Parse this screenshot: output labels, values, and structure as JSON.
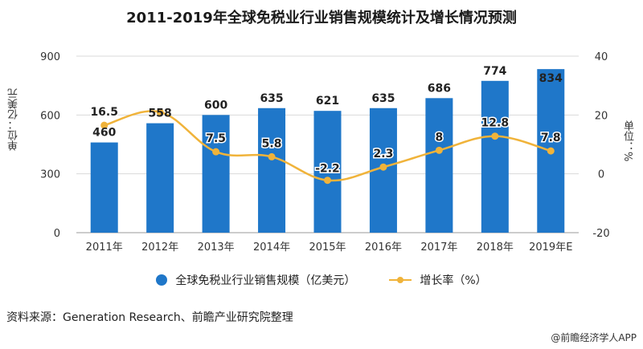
{
  "title": "2011-2019年全球免税业行业销售规模统计及增长情况预测",
  "y_left_label": "单位：亿美元",
  "y_right_label": "单位：%",
  "legend": {
    "bar_label": "全球免税业行业销售规模（亿美元）",
    "line_label": "增长率（%）"
  },
  "source": "资料来源：Generation Research、前瞻产业研究院整理",
  "brand": "@前瞻经济学人APP",
  "colors": {
    "bar": "#1f77c9",
    "line": "#f0b33a",
    "grid": "#d9d9d9"
  },
  "chart_data": {
    "type": "bar",
    "categories": [
      "2011年",
      "2012年",
      "2013年",
      "2014年",
      "2015年",
      "2016年",
      "2017年",
      "2018年",
      "2019年E"
    ],
    "series": [
      {
        "name": "全球免税业行业销售规模（亿美元）",
        "type": "bar",
        "axis": "left",
        "values": [
          460,
          558,
          600,
          635,
          621,
          635,
          686,
          774,
          834
        ]
      },
      {
        "name": "增长率（%）",
        "type": "line",
        "axis": "right",
        "values": [
          16.5,
          21,
          7.5,
          5.8,
          -2.2,
          2.3,
          8,
          12.8,
          7.8
        ],
        "labels": [
          "16.5",
          "",
          "7.5",
          "5.8",
          "-2.2",
          "2.3",
          "8",
          "12.8",
          "7.8"
        ]
      }
    ],
    "y_left": {
      "min": 0,
      "max": 900,
      "ticks": [
        0,
        300,
        600,
        900
      ]
    },
    "y_right": {
      "min": -20,
      "max": 40,
      "ticks": [
        -20,
        0,
        20,
        40
      ]
    },
    "grid": true,
    "legend_position": "bottom"
  }
}
